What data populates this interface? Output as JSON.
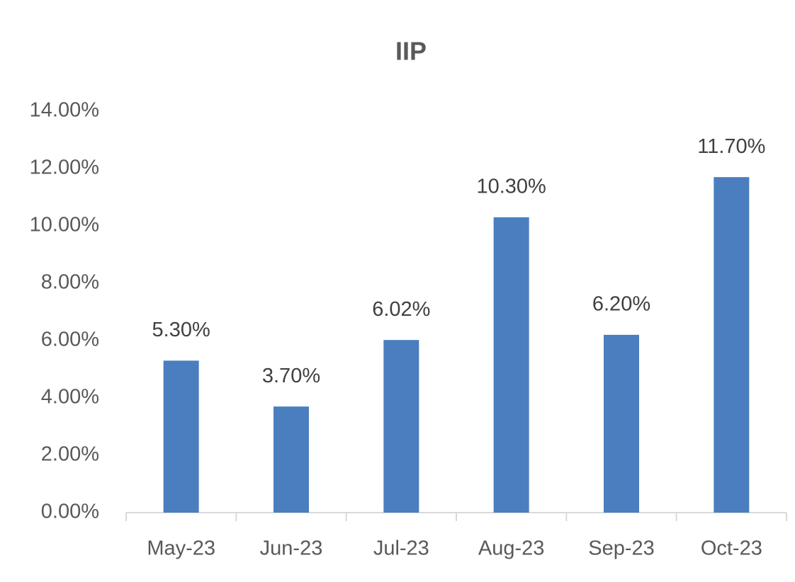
{
  "chart_data": {
    "type": "bar",
    "title": "IIP",
    "categories": [
      "May-23",
      "Jun-23",
      "Jul-23",
      "Aug-23",
      "Sep-23",
      "Oct-23"
    ],
    "values": [
      5.3,
      3.7,
      6.02,
      10.3,
      6.2,
      11.7
    ],
    "value_labels": [
      "5.30%",
      "3.70%",
      "6.02%",
      "10.30%",
      "6.20%",
      "11.70%"
    ],
    "color": "#4a7ebf",
    "ylim": [
      0,
      14
    ],
    "yticks": [
      {
        "value": 0,
        "label": "0.00%"
      },
      {
        "value": 2,
        "label": "2.00%"
      },
      {
        "value": 4,
        "label": "4.00%"
      },
      {
        "value": 6,
        "label": "6.00%"
      },
      {
        "value": 8,
        "label": "8.00%"
      },
      {
        "value": 10,
        "label": "10.00%"
      },
      {
        "value": 12,
        "label": "12.00%"
      },
      {
        "value": 14,
        "label": "14.00%"
      }
    ],
    "grid": false
  }
}
